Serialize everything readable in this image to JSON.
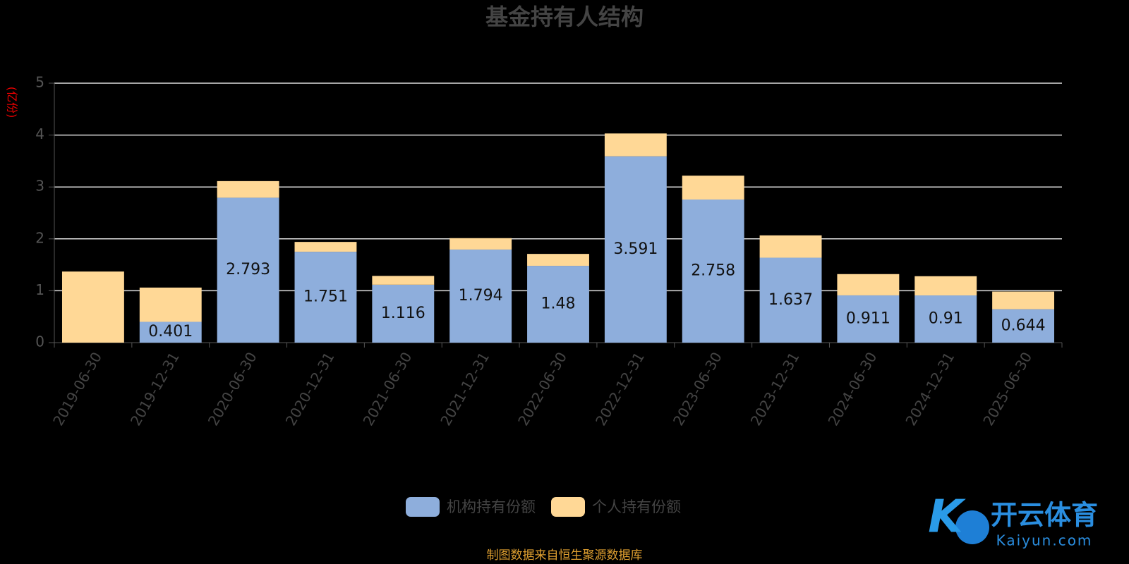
{
  "chart_data": {
    "type": "stacked_bar",
    "title": "基金持有人结构",
    "y_label": "(亿份)",
    "categories": [
      "2019-06-30",
      "2019-12-31",
      "2020-06-30",
      "2020-12-31",
      "2021-06-30",
      "2021-12-31",
      "2022-06-30",
      "2022-12-31",
      "2023-06-30",
      "2023-12-31",
      "2024-06-30",
      "2024-12-31",
      "2025-06-30"
    ],
    "series": [
      {
        "name": "机构持有份额",
        "color": "#8eaedc",
        "values": [
          null,
          0.401,
          2.793,
          1.751,
          1.116,
          1.794,
          1.48,
          3.591,
          2.758,
          1.637,
          0.911,
          0.91,
          0.644
        ]
      },
      {
        "name": "个人持有份额",
        "color": "#ffd896",
        "values": [
          1.37,
          0.66,
          0.32,
          0.19,
          0.17,
          0.22,
          0.23,
          0.44,
          0.46,
          0.43,
          0.41,
          0.37,
          0.34
        ]
      }
    ],
    "data_labels_series": 0,
    "ylim": [
      0,
      5
    ],
    "yticks": [
      0,
      1,
      2,
      3,
      4,
      5
    ],
    "grid": true,
    "source": "制图数据来自恒生聚源数据库"
  },
  "watermark": {
    "title": "开云体育",
    "url": "Kaiyun.com"
  }
}
